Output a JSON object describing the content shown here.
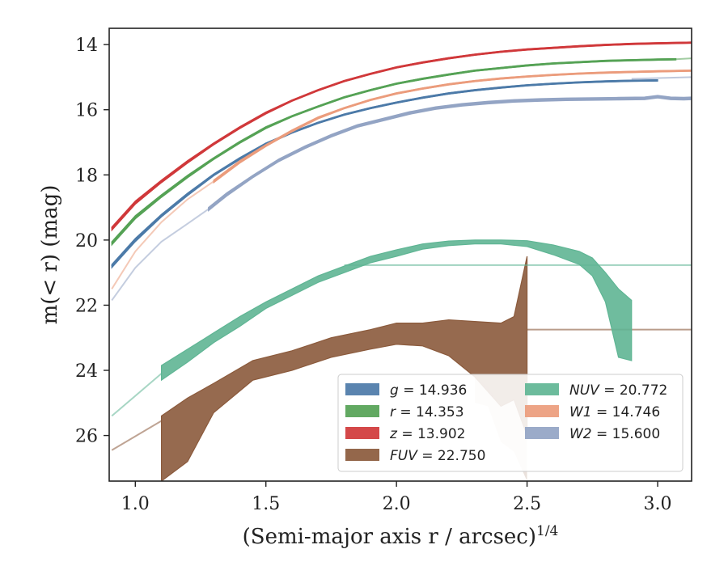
{
  "chart_data": {
    "type": "line",
    "xlabel": "(Semi-major axis r / arcsec)",
    "xlabel_exponent": "1/4",
    "ylabel": "m(< r) (mag)",
    "xlim": [
      0.9,
      3.13
    ],
    "ylim": [
      27.4,
      13.5
    ],
    "y_inverted": true,
    "x_ticks": [
      1.0,
      1.5,
      2.0,
      2.5,
      3.0
    ],
    "x_tick_labels": [
      "1.0",
      "1.5",
      "2.0",
      "2.5",
      "3.0"
    ],
    "y_ticks": [
      14,
      16,
      18,
      20,
      22,
      24,
      26
    ],
    "y_tick_labels": [
      "14",
      "16",
      "18",
      "20",
      "22",
      "24",
      "26"
    ],
    "grid": false,
    "legend_position": "bottom-right",
    "series": [
      {
        "name": "g",
        "band": "g",
        "total": "14.936",
        "color": "#4c7aa8",
        "x": [
          0.91,
          1.0,
          1.1,
          1.2,
          1.3,
          1.4,
          1.5,
          1.6,
          1.7,
          1.8,
          1.9,
          2.0,
          2.1,
          2.2,
          2.3,
          2.4,
          2.5,
          2.6,
          2.7,
          2.8,
          2.9,
          3.0
        ],
        "y": [
          20.8,
          20.0,
          19.25,
          18.6,
          18.0,
          17.5,
          17.05,
          16.7,
          16.4,
          16.15,
          15.95,
          15.78,
          15.63,
          15.5,
          15.4,
          15.32,
          15.25,
          15.2,
          15.16,
          15.13,
          15.11,
          15.1
        ],
        "halfwidth": [
          0.05,
          0.05,
          0.04,
          0.04,
          0.03,
          0.03,
          0.03,
          0.02,
          0.02,
          0.02,
          0.02,
          0.02,
          0.02,
          0.02,
          0.02,
          0.02,
          0.02,
          0.02,
          0.02,
          0.02,
          0.02,
          0.02
        ],
        "ext_x": [],
        "ext_y": []
      },
      {
        "name": "r",
        "band": "r",
        "total": "14.353",
        "color": "#55a255",
        "x": [
          0.91,
          1.0,
          1.1,
          1.2,
          1.3,
          1.4,
          1.5,
          1.6,
          1.7,
          1.8,
          1.9,
          2.0,
          2.1,
          2.2,
          2.3,
          2.4,
          2.5,
          2.6,
          2.7,
          2.8,
          2.9,
          3.0,
          3.07
        ],
        "y": [
          20.1,
          19.3,
          18.65,
          18.05,
          17.5,
          17.0,
          16.55,
          16.2,
          15.9,
          15.62,
          15.4,
          15.2,
          15.05,
          14.92,
          14.8,
          14.72,
          14.64,
          14.58,
          14.54,
          14.5,
          14.48,
          14.46,
          14.45
        ],
        "halfwidth": [
          0.05,
          0.05,
          0.04,
          0.04,
          0.03,
          0.03,
          0.03,
          0.02,
          0.02,
          0.02,
          0.02,
          0.02,
          0.02,
          0.02,
          0.02,
          0.02,
          0.02,
          0.02,
          0.02,
          0.02,
          0.02,
          0.02,
          0.02
        ],
        "ext_x": [
          3.07,
          3.13
        ],
        "ext_y": [
          14.45,
          14.42
        ]
      },
      {
        "name": "z",
        "band": "z",
        "total": "13.902",
        "color": "#d0383a",
        "x": [
          0.91,
          1.0,
          1.1,
          1.2,
          1.3,
          1.4,
          1.5,
          1.6,
          1.7,
          1.8,
          1.9,
          2.0,
          2.1,
          2.2,
          2.3,
          2.4,
          2.5,
          2.6,
          2.7,
          2.8,
          2.9,
          3.0,
          3.13
        ],
        "y": [
          19.65,
          18.85,
          18.2,
          17.6,
          17.05,
          16.55,
          16.1,
          15.72,
          15.4,
          15.12,
          14.9,
          14.7,
          14.55,
          14.42,
          14.31,
          14.22,
          14.15,
          14.1,
          14.05,
          14.01,
          13.98,
          13.96,
          13.94
        ],
        "halfwidth": [
          0.05,
          0.05,
          0.04,
          0.04,
          0.03,
          0.03,
          0.03,
          0.02,
          0.02,
          0.02,
          0.02,
          0.02,
          0.02,
          0.02,
          0.02,
          0.02,
          0.02,
          0.02,
          0.02,
          0.02,
          0.02,
          0.02,
          0.02
        ],
        "ext_x": [],
        "ext_y": []
      },
      {
        "name": "FUV",
        "band": "FUV",
        "total": "22.750",
        "color": "#8b5a3c",
        "x": [
          1.1,
          1.2,
          1.3,
          1.45,
          1.6,
          1.75,
          1.9,
          2.0,
          2.1,
          2.2,
          2.3,
          2.4,
          2.45,
          2.5
        ],
        "y": [
          26.3,
          25.4,
          24.85,
          24.05,
          23.7,
          23.3,
          23.05,
          22.9,
          22.95,
          23.0,
          23.3,
          23.8,
          23.6,
          23.0
        ],
        "lower": [
          25.4,
          24.85,
          24.4,
          23.7,
          23.4,
          23.0,
          22.75,
          22.55,
          22.55,
          22.45,
          22.5,
          22.55,
          22.35,
          20.5
        ],
        "upper": [
          27.4,
          26.8,
          25.3,
          24.3,
          24.0,
          23.6,
          23.35,
          23.2,
          23.25,
          23.55,
          24.2,
          25.1,
          24.9,
          26.0
        ],
        "faint_x": [
          2.3,
          2.35,
          2.4,
          2.45,
          2.5
        ],
        "faint_lower": [
          24.2,
          24.5,
          25.1,
          24.9,
          26.0
        ],
        "faint_upper": [
          25.0,
          25.1,
          26.2,
          26.5,
          27.4
        ],
        "ext_x": [
          0.91,
          1.1
        ],
        "ext_y": [
          26.45,
          25.55
        ],
        "tail_x": [
          2.5,
          3.13
        ],
        "tail_y": [
          22.75,
          22.75
        ]
      },
      {
        "name": "NUV",
        "band": "NUV",
        "total": "20.772",
        "color": "#5fb594",
        "x": [
          1.1,
          1.2,
          1.3,
          1.4,
          1.5,
          1.6,
          1.7,
          1.8,
          1.9,
          2.0,
          2.1,
          2.2,
          2.3,
          2.4,
          2.5,
          2.6,
          2.7,
          2.75,
          2.8,
          2.85,
          2.9
        ],
        "y": [
          24.1,
          23.55,
          23.0,
          22.5,
          22.0,
          21.6,
          21.2,
          20.9,
          20.6,
          20.4,
          20.2,
          20.1,
          20.05,
          20.05,
          20.1,
          20.3,
          20.55,
          20.8,
          21.35,
          22.3,
          22.8
        ],
        "lower": [
          23.85,
          23.35,
          22.85,
          22.35,
          21.9,
          21.5,
          21.1,
          20.8,
          20.5,
          20.3,
          20.12,
          20.03,
          20.0,
          20.0,
          20.02,
          20.15,
          20.35,
          20.55,
          21.0,
          21.5,
          21.85
        ],
        "upper": [
          24.3,
          23.75,
          23.15,
          22.65,
          22.1,
          21.7,
          21.3,
          21.0,
          20.7,
          20.5,
          20.28,
          20.17,
          20.12,
          20.12,
          20.2,
          20.45,
          20.75,
          21.1,
          21.9,
          23.6,
          23.7
        ],
        "ext_x": [
          0.91,
          1.1
        ],
        "ext_y": [
          25.4,
          24.1
        ],
        "tail_x": [
          1.8,
          3.13
        ],
        "tail_y": [
          20.77,
          20.77
        ]
      },
      {
        "name": "W1",
        "band": "W1",
        "total": "14.746",
        "color": "#eb9c7c",
        "x": [
          1.3,
          1.4,
          1.5,
          1.6,
          1.7,
          1.8,
          1.9,
          2.0,
          2.1,
          2.2,
          2.3,
          2.4,
          2.5,
          2.6,
          2.7,
          2.8,
          2.9,
          3.0,
          3.13
        ],
        "y": [
          18.2,
          17.6,
          17.1,
          16.65,
          16.25,
          15.95,
          15.7,
          15.5,
          15.35,
          15.22,
          15.12,
          15.04,
          14.98,
          14.93,
          14.89,
          14.86,
          14.84,
          14.82,
          14.8
        ],
        "halfwidth": [
          0.04,
          0.04,
          0.03,
          0.03,
          0.03,
          0.02,
          0.02,
          0.02,
          0.02,
          0.02,
          0.02,
          0.02,
          0.02,
          0.02,
          0.02,
          0.02,
          0.02,
          0.02,
          0.02
        ],
        "ext_x": [
          0.91,
          1.0,
          1.1,
          1.2,
          1.3
        ],
        "ext_y": [
          21.5,
          20.35,
          19.45,
          18.75,
          18.2
        ]
      },
      {
        "name": "W2",
        "band": "W2",
        "total": "15.600",
        "color": "#93a4c4",
        "x": [
          1.28,
          1.35,
          1.45,
          1.55,
          1.65,
          1.75,
          1.85,
          1.95,
          2.05,
          2.15,
          2.25,
          2.35,
          2.45,
          2.55,
          2.65,
          2.75,
          2.85,
          2.95,
          3.0,
          3.05,
          3.1,
          3.13
        ],
        "y": [
          19.05,
          18.6,
          18.05,
          17.55,
          17.15,
          16.8,
          16.5,
          16.3,
          16.1,
          15.95,
          15.85,
          15.78,
          15.73,
          15.7,
          15.68,
          15.67,
          15.66,
          15.65,
          15.6,
          15.65,
          15.66,
          15.65
        ],
        "halfwidth": [
          0.05,
          0.05,
          0.04,
          0.04,
          0.04,
          0.04,
          0.04,
          0.04,
          0.04,
          0.04,
          0.04,
          0.04,
          0.04,
          0.04,
          0.04,
          0.04,
          0.04,
          0.04,
          0.04,
          0.04,
          0.04,
          0.04
        ],
        "ext_x": [
          0.91,
          1.0,
          1.1,
          1.2,
          1.28
        ],
        "ext_y": [
          21.85,
          20.85,
          20.05,
          19.5,
          19.05
        ],
        "tail_x": [
          2.9,
          3.13
        ],
        "tail_y": [
          15.05,
          15.0
        ]
      }
    ],
    "legend_columns": [
      [
        "g",
        "r",
        "z",
        "FUV"
      ],
      [
        "NUV",
        "W1",
        "W2"
      ]
    ]
  }
}
